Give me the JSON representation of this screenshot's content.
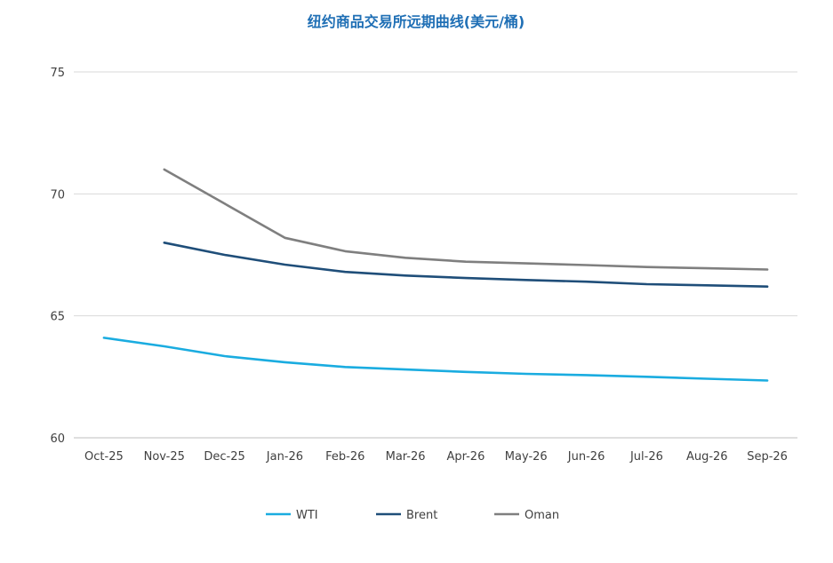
{
  "chart_data": {
    "type": "line",
    "title": "纽约商品交易所远期曲线(美元/桶)",
    "title_color": "#1f6fb5",
    "categories": [
      "Oct-25",
      "Nov-25",
      "Dec-25",
      "Jan-26",
      "Feb-26",
      "Mar-26",
      "Apr-26",
      "May-26",
      "Jun-26",
      "Jul-26",
      "Aug-26",
      "Sep-26"
    ],
    "ylim": [
      60,
      75
    ],
    "yticks": [
      60,
      65,
      70,
      75
    ],
    "grid": true,
    "legend_position": "bottom",
    "series": [
      {
        "name": "WTI",
        "color": "#1aace0",
        "values": [
          64.1,
          63.75,
          63.35,
          63.1,
          62.9,
          62.8,
          62.7,
          62.62,
          62.57,
          62.5,
          62.42,
          62.35
        ]
      },
      {
        "name": "Brent",
        "color": "#1f4e79",
        "values": [
          null,
          68.0,
          67.5,
          67.1,
          66.8,
          66.65,
          66.55,
          66.47,
          66.4,
          66.3,
          66.25,
          66.2
        ]
      },
      {
        "name": "Oman",
        "color": "#7f7f7f",
        "values": [
          null,
          71.0,
          69.6,
          68.2,
          67.65,
          67.38,
          67.22,
          67.15,
          67.08,
          67.0,
          66.95,
          66.9
        ]
      }
    ]
  }
}
